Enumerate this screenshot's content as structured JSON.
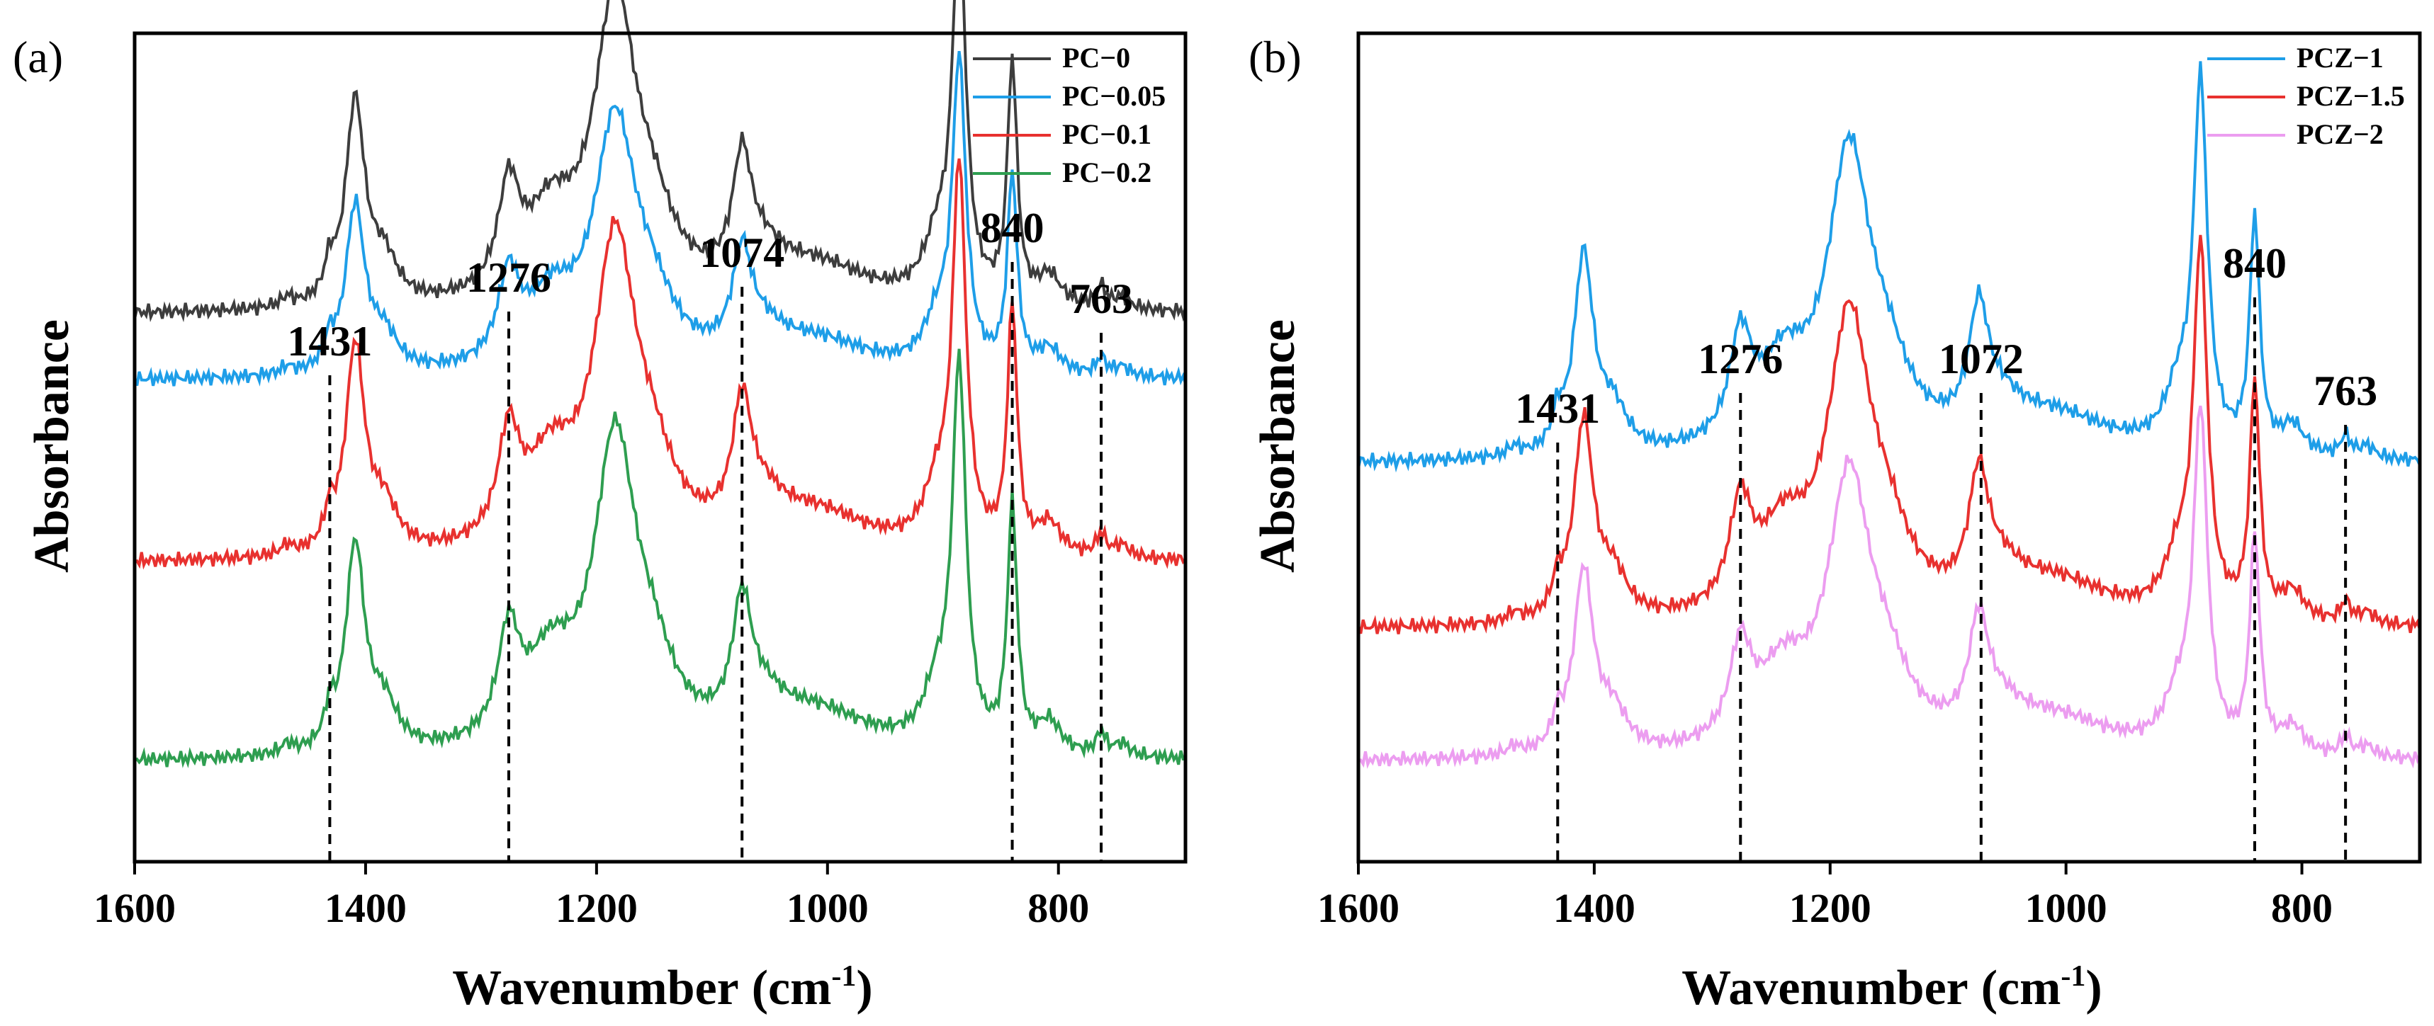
{
  "chart_data": [
    {
      "type": "line",
      "panel_label": "(a)",
      "xlabel": "Wavenumber",
      "xlabel_unit": "(cm",
      "xlabel_sup": "-1",
      "xlabel_close": ")",
      "ylabel": "Absorbance",
      "xlim": [
        1600,
        690
      ],
      "x_reversed": true,
      "x_ticks": [
        1600,
        1400,
        1200,
        1000,
        800
      ],
      "y_ticks": [],
      "grid": false,
      "legend_position": "top-right",
      "peak_markers": [
        {
          "x": 1431,
          "label": "1431"
        },
        {
          "x": 1276,
          "label": "1276"
        },
        {
          "x": 1074,
          "label": "1074"
        },
        {
          "x": 840,
          "label": "840"
        },
        {
          "x": 763,
          "label": "763"
        }
      ],
      "series": [
        {
          "name": "PC−0",
          "color": "#3d3d3d",
          "offset": 0.66,
          "scale": 1.0
        },
        {
          "name": "PC−0.05",
          "color": "#1e9ee8",
          "offset": 0.58,
          "scale": 0.82
        },
        {
          "name": "PC−0.1",
          "color": "#e8312f",
          "offset": 0.36,
          "scale": 1.02
        },
        {
          "name": "PC−0.2",
          "color": "#2e9e50",
          "offset": 0.12,
          "scale": 1.02
        }
      ]
    },
    {
      "type": "line",
      "panel_label": "(b)",
      "xlabel": "Wavenumber",
      "xlabel_unit": "(cm",
      "xlabel_sup": "-1",
      "xlabel_close": ")",
      "ylabel": "Absorbance",
      "xlim": [
        1600,
        700
      ],
      "x_reversed": true,
      "x_ticks": [
        1600,
        1400,
        1200,
        1000,
        800
      ],
      "y_ticks": [],
      "grid": false,
      "legend_position": "top-right",
      "peak_markers": [
        {
          "x": 1431,
          "label": "1431"
        },
        {
          "x": 1276,
          "label": "1276"
        },
        {
          "x": 1072,
          "label": "1072"
        },
        {
          "x": 840,
          "label": "840"
        },
        {
          "x": 763,
          "label": "763"
        }
      ],
      "series": [
        {
          "name": "PCZ−1",
          "color": "#1e9ee8",
          "offset": 0.48,
          "scale": 0.98
        },
        {
          "name": "PCZ−1.5",
          "color": "#e8312f",
          "offset": 0.28,
          "scale": 0.98
        },
        {
          "name": "PCZ−2",
          "color": "#ec9df0",
          "offset": 0.12,
          "scale": 0.9
        }
      ]
    }
  ]
}
